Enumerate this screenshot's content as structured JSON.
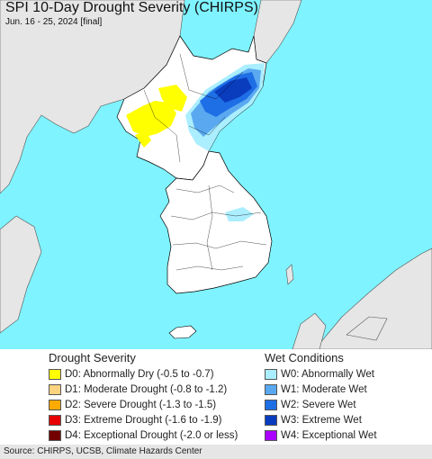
{
  "header": {
    "title": "SPI 10-Day Drought Severity (CHIRPS)",
    "subtitle": "Jun. 16 - 25, 2024 [final]"
  },
  "map": {
    "ocean_color": "#7ff3ff",
    "land_color": "#ffffff",
    "foreign_land_color": "#e6e6e6",
    "border_color": "#000000"
  },
  "legend": {
    "drought": {
      "title": "Drought Severity",
      "items": [
        {
          "label": "D0: Abnormally Dry (-0.5 to -0.7)",
          "color": "#ffff00"
        },
        {
          "label": "D1: Moderate Drought (-0.8 to -1.2)",
          "color": "#fcd37f"
        },
        {
          "label": "D2: Severe Drought (-1.3 to -1.5)",
          "color": "#ffaa00"
        },
        {
          "label": "D3: Extreme Drought (-1.6 to -1.9)",
          "color": "#e60000"
        },
        {
          "label": "D4: Exceptional Drought (-2.0 or less)",
          "color": "#730000"
        }
      ]
    },
    "wet": {
      "title": "Wet Conditions",
      "items": [
        {
          "label": "W0: Abnormally Wet",
          "color": "#aaeeff"
        },
        {
          "label": "W1: Moderate Wet",
          "color": "#5aa9f0"
        },
        {
          "label": "W2: Severe Wet",
          "color": "#1e6ee6"
        },
        {
          "label": "W3: Extreme Wet",
          "color": "#0a3cbe"
        },
        {
          "label": "W4: Exceptional Wet",
          "color": "#aa00ff"
        }
      ]
    }
  },
  "footer": {
    "source": "Source: CHIRPS, UCSB, Climate Hazards Center"
  }
}
